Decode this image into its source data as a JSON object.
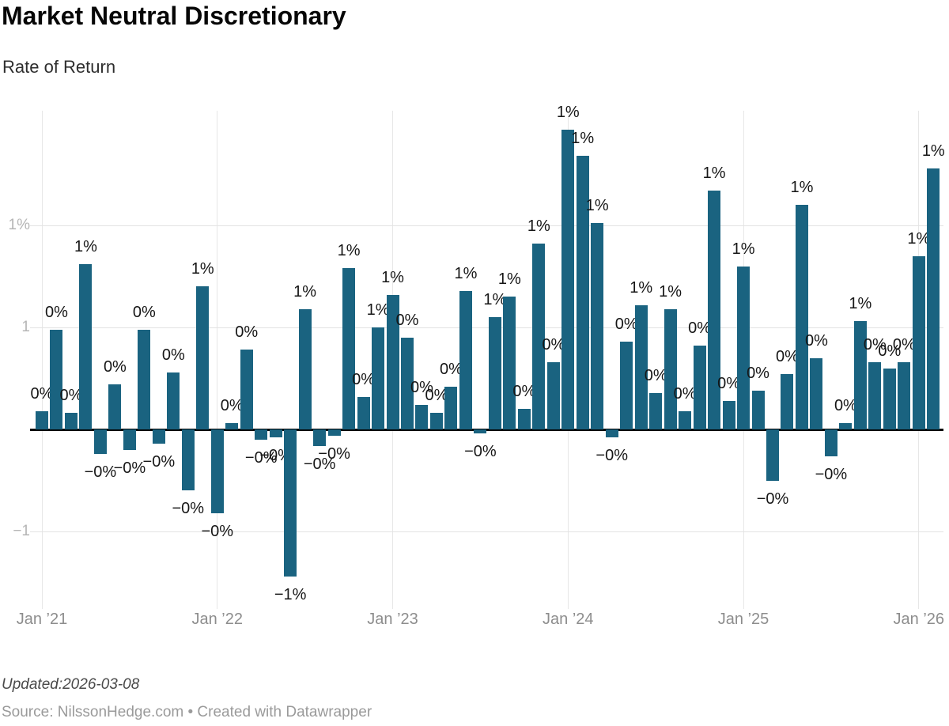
{
  "header": {
    "title": "Market Neutral Discretionary",
    "subtitle": "Rate of Return"
  },
  "footer": {
    "updated": "Updated:2026-03-08",
    "source": "Source: NilssonHedge.com • Created with Datawrapper"
  },
  "colors": {
    "bar": "#1a6380",
    "baseline": "#000000",
    "gridline": "#e3e3e3",
    "y_tick_text": "#b5b5b5",
    "x_tick_text": "#8d8d8d",
    "bar_label_text": "#161616",
    "title_text": "#070707",
    "subtitle_text": "#2e2e2e",
    "updated_text": "#4a4a4a",
    "source_text": "#9a9a9a"
  },
  "chart_data": {
    "type": "bar",
    "title": "Market Neutral Discretionary",
    "ylabel": "Rate of Return",
    "unit": "%",
    "grid": true,
    "legend": false,
    "ylim": [
      -0.88,
      1.56
    ],
    "categories": [
      "Jan 2021",
      "Feb 2021",
      "Mar 2021",
      "Apr 2021",
      "May 2021",
      "Jun 2021",
      "Jul 2021",
      "Aug 2021",
      "Sep 2021",
      "Oct 2021",
      "Nov 2021",
      "Dec 2021",
      "Jan 2022",
      "Feb 2022",
      "Mar 2022",
      "Apr 2022",
      "May 2022",
      "Jun 2022",
      "Jul 2022",
      "Aug 2022",
      "Sep 2022",
      "Oct 2022",
      "Nov 2022",
      "Dec 2022",
      "Jan 2023",
      "Feb 2023",
      "Mar 2023",
      "Apr 2023",
      "May 2023",
      "Jun 2023",
      "Jul 2023",
      "Aug 2023",
      "Sep 2023",
      "Oct 2023",
      "Nov 2023",
      "Dec 2023",
      "Jan 2024",
      "Feb 2024",
      "Mar 2024",
      "Apr 2024",
      "May 2024",
      "Jun 2024",
      "Jul 2024",
      "Aug 2024",
      "Sep 2024",
      "Oct 2024",
      "Nov 2024",
      "Dec 2024",
      "Jan 2025",
      "Feb 2025",
      "Mar 2025",
      "Apr 2025",
      "May 2025",
      "Jun 2025",
      "Jul 2025",
      "Aug 2025",
      "Sep 2025",
      "Oct 2025",
      "Nov 2025",
      "Dec 2025",
      "Jan 2026",
      "Feb 2026"
    ],
    "values": [
      0.09,
      0.49,
      0.08,
      0.81,
      -0.12,
      0.22,
      -0.1,
      0.49,
      -0.07,
      0.28,
      -0.3,
      0.7,
      -0.41,
      0.03,
      0.39,
      -0.05,
      -0.04,
      -0.72,
      0.59,
      -0.08,
      -0.03,
      0.79,
      0.16,
      0.5,
      0.66,
      0.45,
      0.12,
      0.08,
      0.21,
      0.68,
      -0.02,
      0.55,
      0.65,
      0.1,
      0.91,
      0.33,
      1.47,
      1.34,
      1.01,
      -0.04,
      0.43,
      0.61,
      0.18,
      0.59,
      0.09,
      0.41,
      1.17,
      0.14,
      0.8,
      0.19,
      -0.25,
      0.27,
      1.1,
      0.35,
      -0.13,
      0.03,
      0.53,
      0.33,
      0.3,
      0.33,
      0.85,
      1.28
    ],
    "bar_labels": [
      "0%",
      "0%",
      "0%",
      "1%",
      "−0%",
      "0%",
      "−0%",
      "0%",
      "−0%",
      "0%",
      "−0%",
      "1%",
      "−0%",
      "0%",
      "0%",
      "−0%",
      "−0%",
      "−1%",
      "1%",
      "−0%",
      "−0%",
      "1%",
      "0%",
      "1%",
      "1%",
      "0%",
      "0%",
      "0%",
      "0%",
      "1%",
      "−0%",
      "1%",
      "1%",
      "0%",
      "1%",
      "0%",
      "1%",
      "1%",
      "1%",
      "−0%",
      "0%",
      "1%",
      "0%",
      "1%",
      "0%",
      "0%",
      "1%",
      "0%",
      "1%",
      "0%",
      "−0%",
      "0%",
      "1%",
      "0%",
      "−0%",
      "0%",
      "1%",
      "0%",
      "0%",
      "0%",
      "1%",
      "1%"
    ],
    "y_ticks": [
      {
        "value": 1.0,
        "label": "1%"
      },
      {
        "value": 0.5,
        "label": "1"
      },
      {
        "value": -0.5,
        "label": "−1"
      }
    ],
    "x_ticks": [
      {
        "month_index": 0,
        "label": "Jan ’21"
      },
      {
        "month_index": 12,
        "label": "Jan ’22"
      },
      {
        "month_index": 24,
        "label": "Jan ’23"
      },
      {
        "month_index": 36,
        "label": "Jan ’24"
      },
      {
        "month_index": 48,
        "label": "Jan ’25"
      },
      {
        "month_index": 60,
        "label": "Jan ’26"
      }
    ]
  }
}
